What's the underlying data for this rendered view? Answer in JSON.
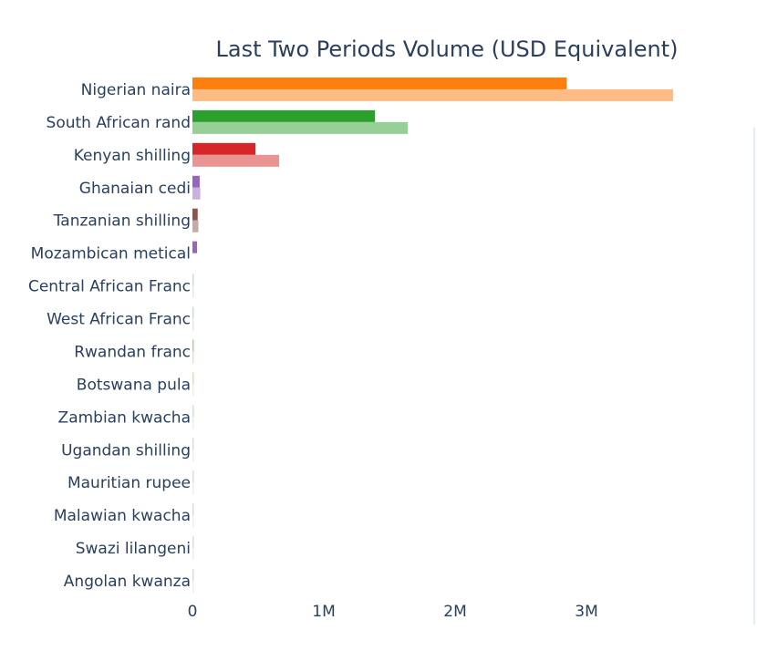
{
  "chart_data": {
    "type": "bar",
    "orientation": "horizontal",
    "title": "Last Two Periods Volume (USD Equivalent)",
    "xlabel": "",
    "ylabel": "",
    "xlim": [
      0,
      3800000
    ],
    "x_ticks": [
      0,
      1000000,
      2000000,
      3000000
    ],
    "x_tick_labels": [
      "0",
      "1M",
      "2M",
      "3M"
    ],
    "grid": false,
    "legend": "none",
    "categories": [
      "Nigerian naira",
      "South African rand",
      "Kenyan shilling",
      "Ghanaian cedi",
      "Tanzanian shilling",
      "Mozambican metical",
      "Central African Franc",
      "West African Franc",
      "Rwandan franc",
      "Botswana pula",
      "Zambian kwacha",
      "Ugandan shilling",
      "Mauritian rupee",
      "Malawian kwacha",
      "Swazi lilangeni",
      "Angolan kwanza"
    ],
    "series": [
      {
        "values": [
          2850000,
          1390000,
          480000,
          55000,
          40000,
          35000,
          8000,
          7000,
          5000,
          4000,
          3000,
          2500,
          2000,
          1500,
          1000,
          500
        ]
      },
      {
        "values": [
          3660000,
          1640000,
          660000,
          60000,
          45000,
          0,
          7000,
          6000,
          4000,
          6000,
          3000,
          2000,
          1500,
          1000,
          800,
          400
        ]
      }
    ],
    "colors": [
      [
        "#ff7f0e",
        "#ffbb84"
      ],
      [
        "#2ca02c",
        "#96d096"
      ],
      [
        "#d62728",
        "#ea9393"
      ],
      [
        "#9467bd",
        "#c9b3de"
      ],
      [
        "#8c564b",
        "#c5aaa5"
      ],
      [
        "#9467bd",
        "#c9b3de"
      ],
      [
        "#c6dbef",
        "#dde8f5"
      ],
      [
        "#c6dbef",
        "#dde8f5"
      ],
      [
        "#a1d99b",
        "#d0ecd0"
      ],
      [
        "#fdd0a2",
        "#fde8d0"
      ],
      [
        "#c7e9c0",
        "#e3f4df"
      ],
      [
        "#dadaeb",
        "#ececf5"
      ],
      [
        "#dadaeb",
        "#ececf5"
      ],
      [
        "#dadaeb",
        "#ececf5"
      ],
      [
        "#dadaeb",
        "#ececf5"
      ],
      [
        "#dadaeb",
        "#ececf5"
      ]
    ],
    "axis_color": "#2a3f5f"
  }
}
